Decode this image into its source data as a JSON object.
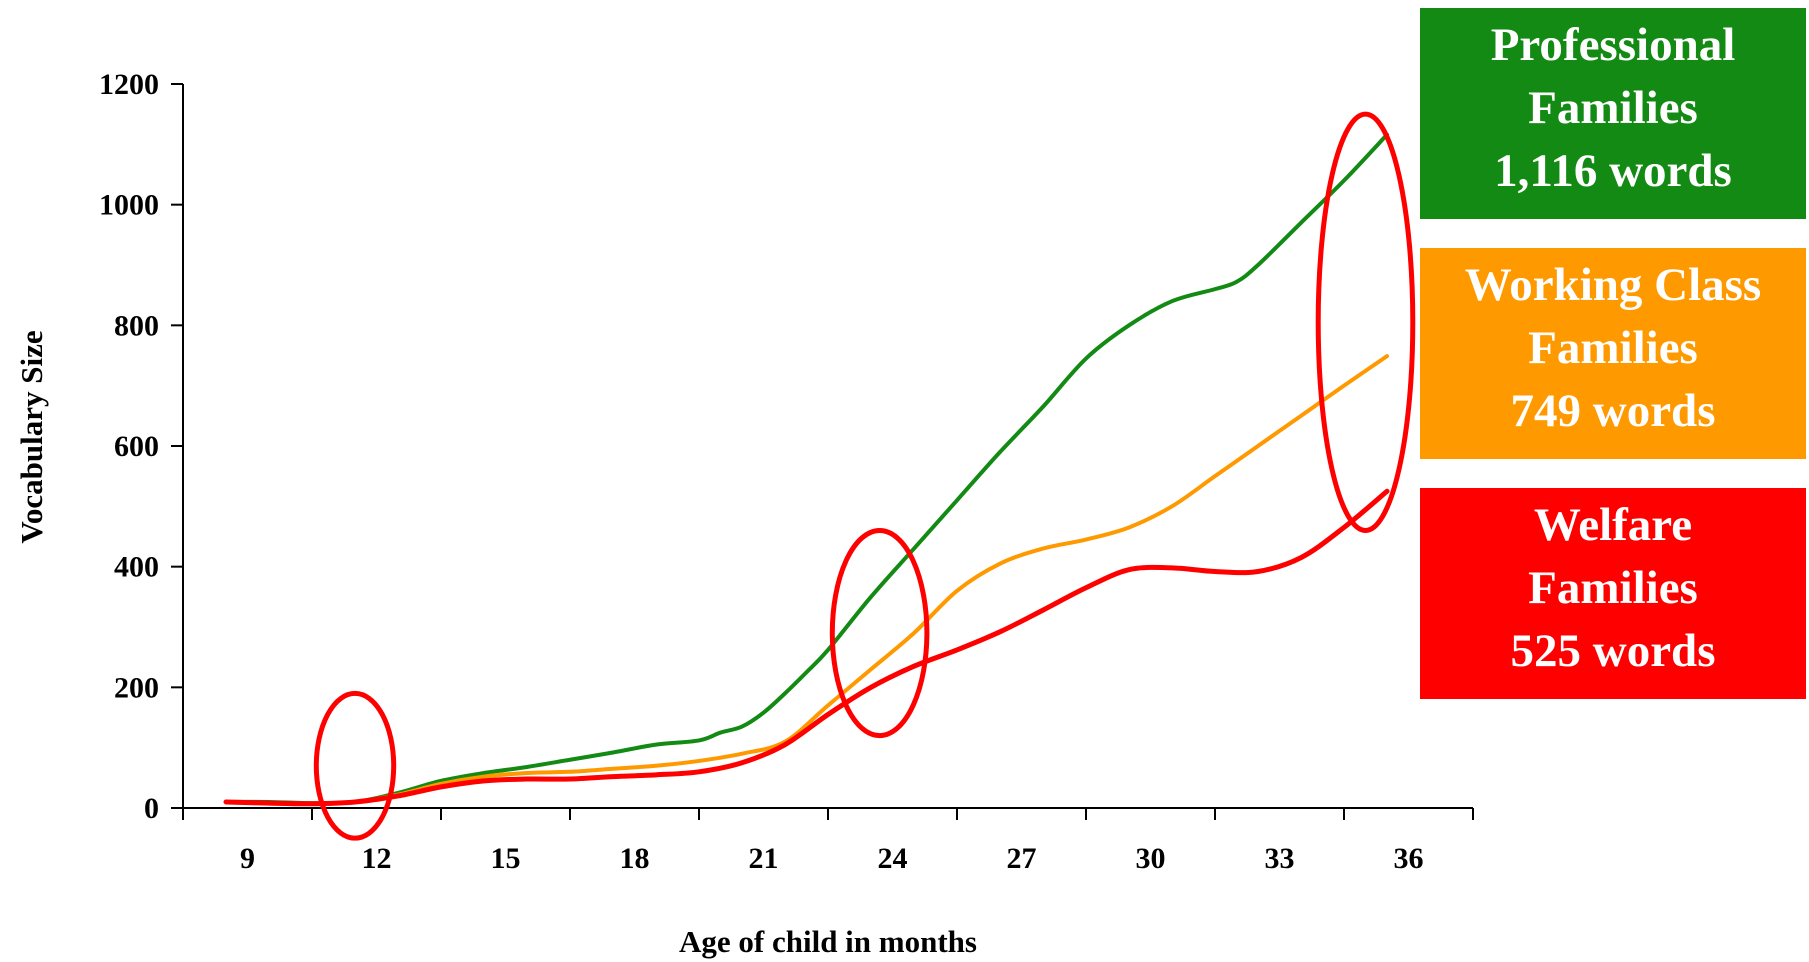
{
  "chart_data": {
    "type": "line",
    "xlabel": "Age of child in months",
    "ylabel": "Vocabulary Size",
    "xlim": [
      8,
      38
    ],
    "ylim": [
      0,
      1200
    ],
    "x_ticks": [
      9,
      12,
      15,
      18,
      21,
      24,
      27,
      30,
      33,
      36
    ],
    "y_ticks": [
      0,
      200,
      400,
      600,
      800,
      1000,
      1200
    ],
    "grid": false,
    "legend_position": "right",
    "series": [
      {
        "key": "professional",
        "color": "#138A13",
        "x": [
          9,
          10,
          11,
          12,
          13,
          14,
          15,
          16,
          17,
          18,
          19,
          20,
          20.5,
          21,
          21.5,
          22,
          22.5,
          23,
          24,
          25,
          26,
          27,
          28,
          29,
          30,
          31,
          32,
          32.5,
          33,
          34,
          35,
          36
        ],
        "values": [
          10,
          10,
          8,
          10,
          25,
          45,
          58,
          68,
          80,
          92,
          105,
          112,
          125,
          135,
          158,
          190,
          225,
          262,
          350,
          430,
          510,
          590,
          665,
          745,
          800,
          840,
          860,
          872,
          900,
          970,
          1040,
          1116
        ]
      },
      {
        "key": "working",
        "color": "#FF9900",
        "x": [
          9,
          10,
          11,
          12,
          13,
          14,
          15,
          16,
          17,
          18,
          19,
          20,
          21,
          22,
          23,
          24,
          25,
          26,
          27,
          28,
          29,
          30,
          31,
          32,
          33,
          34,
          35,
          36
        ],
        "values": [
          10,
          8,
          7,
          10,
          22,
          40,
          52,
          58,
          60,
          65,
          70,
          78,
          90,
          110,
          170,
          230,
          290,
          360,
          405,
          430,
          445,
          465,
          500,
          550,
          600,
          650,
          700,
          749
        ]
      },
      {
        "key": "welfare",
        "color": "#FF0000",
        "x": [
          9,
          10,
          11,
          12,
          13,
          14,
          15,
          16,
          17,
          18,
          19,
          20,
          21,
          22,
          23,
          24,
          25,
          26,
          27,
          28,
          29,
          30,
          31,
          32,
          33,
          34,
          35,
          36
        ],
        "values": [
          10,
          8,
          7,
          10,
          20,
          35,
          45,
          48,
          48,
          52,
          55,
          60,
          75,
          105,
          155,
          200,
          235,
          262,
          292,
          328,
          365,
          395,
          398,
          392,
          392,
          415,
          465,
          525
        ]
      }
    ],
    "annotations": [
      {
        "type": "ellipse",
        "color": "#FF0000",
        "x": 12,
        "y": 70,
        "rx_months": 0.9,
        "ry_value": 240
      },
      {
        "type": "ellipse",
        "color": "#FF0000",
        "x": 24.2,
        "y": 290,
        "rx_months": 1.1,
        "ry_value": 340
      },
      {
        "type": "ellipse",
        "color": "#FF0000",
        "x": 35.5,
        "y": 805,
        "rx_months": 1.1,
        "ry_value": 690
      }
    ]
  },
  "legend": [
    {
      "key": "professional",
      "line1": "Professional",
      "line2": "Families",
      "line3": "1,116 words",
      "color": "#138A13"
    },
    {
      "key": "working",
      "line1": "Working Class",
      "line2": "Families",
      "line3": "749 words",
      "color": "#FF9900"
    },
    {
      "key": "welfare",
      "line1": "Welfare",
      "line2": "Families",
      "line3": "525 words",
      "color": "#FF0000"
    }
  ]
}
